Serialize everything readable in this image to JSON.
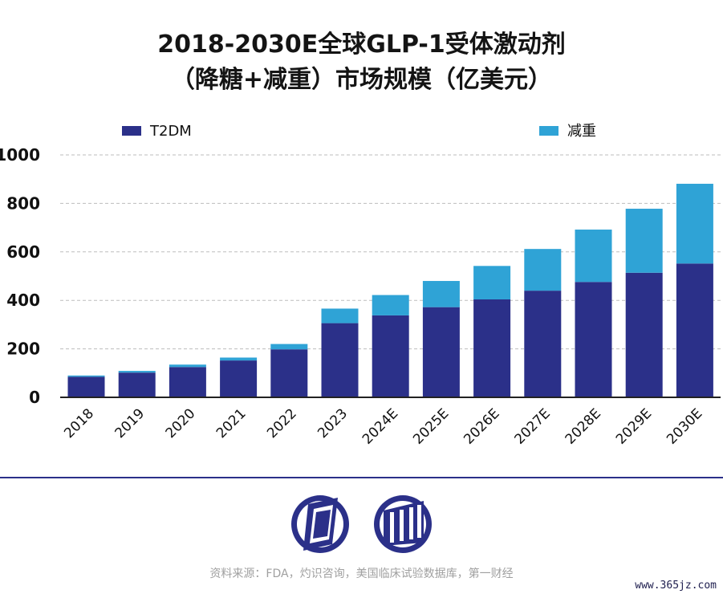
{
  "chart_data": {
    "type": "bar",
    "stacked": true,
    "title": "2018-2030E全球GLP-1受体激动剂",
    "subtitle": "（降糖+减重）市场规模（亿美元）",
    "categories": [
      "2018",
      "2019",
      "2020",
      "2021",
      "2022",
      "2023",
      "2024E",
      "2025E",
      "2026E",
      "2027E",
      "2028E",
      "2029E",
      "2030E"
    ],
    "series": [
      {
        "name": "T2DM",
        "color": "#2b3089",
        "values": [
          85,
          102,
          125,
          152,
          198,
          306,
          338,
          372,
          404,
          440,
          476,
          514,
          552
        ]
      },
      {
        "name": "减重",
        "color": "#2fa3d6",
        "values": [
          5,
          7,
          10,
          12,
          22,
          60,
          84,
          108,
          138,
          172,
          216,
          264,
          329
        ]
      }
    ],
    "ylim": [
      0,
      1000
    ],
    "yticks": [
      "0",
      "200",
      "400",
      "600",
      "800",
      "1000"
    ],
    "grid": true,
    "legend": "top"
  },
  "footer": {
    "source": "资料来源：FDA，灼识咨询，美国临床试验数据库，第一财经",
    "watermark": "www.365jz.com"
  }
}
